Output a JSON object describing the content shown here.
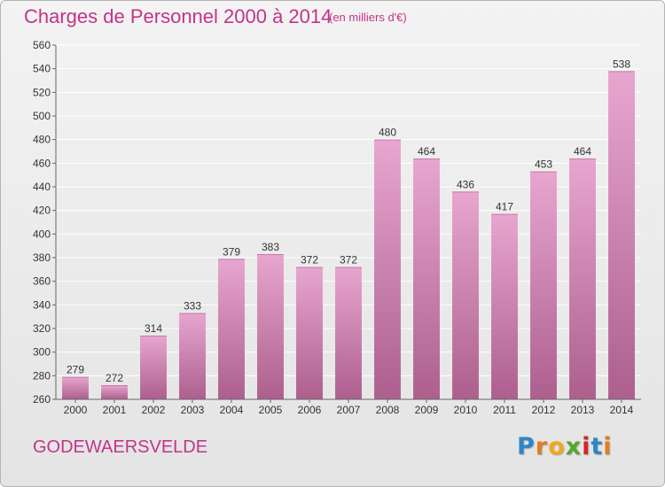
{
  "header": {
    "title": "Charges de Personnel 2000 à 2014",
    "subtitle": "(en milliers d'€)"
  },
  "footer": {
    "commune": "GODEWAERSVELDE",
    "logo": {
      "letters": [
        "P",
        "r",
        "o",
        "x",
        "i",
        "t",
        "i"
      ],
      "colors": [
        "#2f86c5",
        "#e27d1e",
        "#f0a81a",
        "#5aa52e",
        "#d8232a",
        "#2f86c5",
        "#e27d1e"
      ]
    }
  },
  "colors": {
    "accent": "#c2348a",
    "bar_top": "#e7a6cf",
    "bar_bottom": "#ad5f8e",
    "grid": "#ffffff",
    "background": "#ebebeb"
  },
  "chart_data": {
    "type": "bar",
    "categories": [
      "2000",
      "2001",
      "2002",
      "2003",
      "2004",
      "2005",
      "2006",
      "2007",
      "2008",
      "2009",
      "2010",
      "2011",
      "2012",
      "2013",
      "2014"
    ],
    "values": [
      279,
      272,
      314,
      333,
      379,
      383,
      372,
      372,
      480,
      464,
      436,
      417,
      453,
      464,
      538
    ],
    "ylim": [
      260,
      560
    ],
    "yticks": [
      260,
      280,
      300,
      320,
      340,
      360,
      380,
      400,
      420,
      440,
      460,
      480,
      500,
      520,
      540,
      560
    ],
    "grid": true,
    "legend": "none"
  }
}
